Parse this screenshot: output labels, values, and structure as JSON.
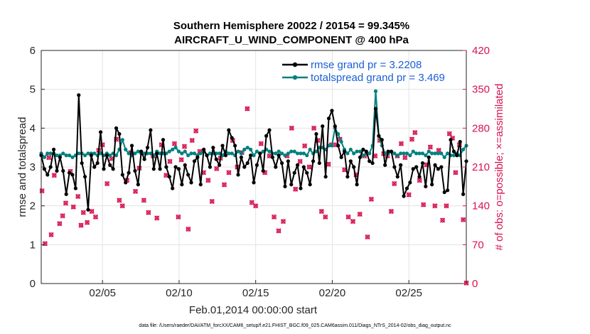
{
  "chart_data": {
    "type": "line",
    "title": "Southern Hemisphere 20022 / 20154 = 99.345%",
    "subtitle": "AIRCRAFT_U_WIND_COMPONENT @ 400 hPa",
    "xlabel": "Feb.01,2014 00:00:00 start",
    "ylabel_left": "rmse and totalspread",
    "ylabel_right": "# of obs: o=possible; ×=assimilated",
    "ylim_left": [
      0,
      6
    ],
    "ylim_right": [
      0,
      420
    ],
    "xlim": [
      1.0,
      28.75
    ],
    "grid": true,
    "yticks_left": [
      "0",
      "1",
      "2",
      "3",
      "4",
      "5",
      "6"
    ],
    "yticks_right": [
      "0",
      "70",
      "140",
      "210",
      "280",
      "350",
      "420"
    ],
    "xticks": [
      {
        "day": 5,
        "label": "02/05"
      },
      {
        "day": 10,
        "label": "02/10"
      },
      {
        "day": 15,
        "label": "02/15"
      },
      {
        "day": 20,
        "label": "02/20"
      },
      {
        "day": 25,
        "label": "02/25"
      }
    ],
    "series": [
      {
        "name": "rmse",
        "legend": "rmse grand pr = 3.2208",
        "color": "#000000",
        "values": [
          3.3,
          2.95,
          2.8,
          3.0,
          3.45,
          2.9,
          3.25,
          2.9,
          2.3,
          2.85,
          2.8,
          2.45,
          4.85,
          3.1,
          2.75,
          1.9,
          3.3,
          3.0,
          3.1,
          3.9,
          2.95,
          3.3,
          3.05,
          2.95,
          4.0,
          3.85,
          2.8,
          2.6,
          2.85,
          3.55,
          2.9,
          2.55,
          3.4,
          3.2,
          3.5,
          3.95,
          2.95,
          3.35,
          2.95,
          3.7,
          3.0,
          2.75,
          2.45,
          3.0,
          2.95,
          2.55,
          3.05,
          2.8,
          2.6,
          3.15,
          3.25,
          2.55,
          3.45,
          3.3,
          3.0,
          3.5,
          3.2,
          3.05,
          3.55,
          3.3,
          3.95,
          3.75,
          3.55,
          2.8,
          3.25,
          3.0,
          3.1,
          3.3,
          2.6,
          3.05,
          3.35,
          2.9,
          3.8,
          3.95,
          3.25,
          3.0,
          3.3,
          3.1,
          2.5,
          3.15,
          2.55,
          2.85,
          3.05,
          2.45,
          3.0,
          2.85,
          2.55,
          3.15,
          3.85,
          3.1,
          4.05,
          2.75,
          4.25,
          4.45,
          4.05,
          3.55,
          3.25,
          3.4,
          2.75,
          3.15,
          3.0,
          2.55,
          3.25,
          3.45,
          3.4,
          3.15,
          3.1,
          4.5,
          3.8,
          3.7,
          3.05,
          3.4,
          3.4,
          3.0,
          2.75,
          3.05,
          2.25,
          2.45,
          2.6,
          2.95,
          3.0,
          2.75,
          3.1,
          2.5,
          3.25,
          2.55,
          3.05,
          2.95,
          3.0,
          2.35,
          2.4,
          3.7,
          3.4,
          3.3,
          3.65,
          2.3,
          3.15
        ]
      },
      {
        "name": "totalspread",
        "legend": "totalspread grand pr = 3.469",
        "color": "#00807f",
        "values": [
          3.35,
          3.25,
          3.35,
          3.35,
          3.35,
          3.3,
          3.3,
          3.35,
          3.3,
          3.3,
          3.25,
          3.3,
          3.35,
          3.35,
          3.3,
          3.35,
          3.35,
          3.35,
          3.3,
          3.35,
          3.3,
          3.35,
          3.3,
          3.35,
          3.3,
          3.45,
          3.7,
          3.45,
          3.35,
          3.3,
          3.35,
          3.4,
          3.35,
          3.35,
          3.35,
          3.35,
          3.3,
          3.4,
          3.35,
          3.35,
          3.35,
          3.4,
          3.45,
          3.5,
          3.4,
          3.35,
          3.4,
          3.3,
          3.35,
          3.35,
          3.3,
          3.35,
          3.4,
          3.3,
          3.35,
          3.35,
          3.35,
          3.35,
          3.3,
          3.4,
          3.35,
          3.35,
          3.3,
          3.4,
          3.35,
          3.45,
          3.5,
          3.45,
          3.3,
          3.4,
          3.35,
          3.4,
          3.45,
          3.4,
          3.35,
          3.35,
          3.4,
          3.35,
          3.3,
          3.35,
          3.4,
          3.4,
          3.35,
          3.35,
          3.35,
          3.3,
          3.45,
          3.35,
          3.4,
          3.5,
          3.5,
          3.45,
          3.55,
          3.55,
          4.0,
          3.85,
          3.65,
          3.45,
          3.35,
          3.45,
          3.35,
          3.4,
          3.4,
          3.3,
          3.35,
          3.35,
          3.55,
          4.95,
          3.8,
          3.55,
          3.35,
          3.35,
          3.4,
          3.35,
          3.3,
          3.35,
          3.35,
          3.35,
          3.3,
          3.4,
          3.35,
          3.35,
          3.35,
          3.3,
          3.4,
          3.35,
          3.35,
          3.35,
          3.35,
          3.25,
          3.35,
          3.3,
          3.3,
          3.35,
          3.3,
          3.45,
          3.55
        ]
      }
    ],
    "obs_possible": [
      {
        "day": 1.05,
        "value": 167
      },
      {
        "day": 1.25,
        "value": 72
      },
      {
        "day": 1.5,
        "value": 227
      },
      {
        "day": 1.65,
        "value": 88
      },
      {
        "day": 1.85,
        "value": 195
      },
      {
        "day": 2.2,
        "value": 108
      },
      {
        "day": 2.4,
        "value": 122
      },
      {
        "day": 2.6,
        "value": 145
      },
      {
        "day": 2.9,
        "value": 202
      },
      {
        "day": 3.1,
        "value": 138
      },
      {
        "day": 3.4,
        "value": 157
      },
      {
        "day": 3.6,
        "value": 105
      },
      {
        "day": 3.75,
        "value": 128
      },
      {
        "day": 4.0,
        "value": 110
      },
      {
        "day": 4.3,
        "value": 130
      },
      {
        "day": 4.55,
        "value": 120
      },
      {
        "day": 4.75,
        "value": 240
      },
      {
        "day": 5.0,
        "value": 250
      },
      {
        "day": 5.3,
        "value": 180
      },
      {
        "day": 5.6,
        "value": 225
      },
      {
        "day": 5.9,
        "value": 260
      },
      {
        "day": 6.1,
        "value": 150
      },
      {
        "day": 6.3,
        "value": 140
      },
      {
        "day": 6.6,
        "value": 186
      },
      {
        "day": 6.85,
        "value": 236
      },
      {
        "day": 7.15,
        "value": 166
      },
      {
        "day": 7.4,
        "value": 208
      },
      {
        "day": 7.7,
        "value": 150
      },
      {
        "day": 8.0,
        "value": 128
      },
      {
        "day": 8.3,
        "value": 230
      },
      {
        "day": 8.55,
        "value": 118
      },
      {
        "day": 8.85,
        "value": 250
      },
      {
        "day": 9.15,
        "value": 195
      },
      {
        "day": 9.4,
        "value": 220
      },
      {
        "day": 9.7,
        "value": 252
      },
      {
        "day": 9.95,
        "value": 120
      },
      {
        "day": 10.15,
        "value": 223
      },
      {
        "day": 10.35,
        "value": 247
      },
      {
        "day": 10.6,
        "value": 98
      },
      {
        "day": 10.85,
        "value": 258
      },
      {
        "day": 11.1,
        "value": 275
      },
      {
        "day": 11.35,
        "value": 238
      },
      {
        "day": 11.6,
        "value": 200
      },
      {
        "day": 11.9,
        "value": 186
      },
      {
        "day": 12.15,
        "value": 148
      },
      {
        "day": 12.45,
        "value": 207
      },
      {
        "day": 12.7,
        "value": 226
      },
      {
        "day": 12.95,
        "value": 178
      },
      {
        "day": 13.25,
        "value": 200
      },
      {
        "day": 13.5,
        "value": 258
      },
      {
        "day": 13.8,
        "value": 210
      },
      {
        "day": 14.1,
        "value": 236
      },
      {
        "day": 14.45,
        "value": 315
      },
      {
        "day": 14.75,
        "value": 146
      },
      {
        "day": 15.0,
        "value": 140
      },
      {
        "day": 15.35,
        "value": 252
      },
      {
        "day": 15.6,
        "value": 200
      },
      {
        "day": 15.9,
        "value": 230
      },
      {
        "day": 16.2,
        "value": 120
      },
      {
        "day": 16.5,
        "value": 95
      },
      {
        "day": 16.8,
        "value": 112
      },
      {
        "day": 17.05,
        "value": 230
      },
      {
        "day": 17.35,
        "value": 280
      },
      {
        "day": 17.6,
        "value": 170
      },
      {
        "day": 17.9,
        "value": 220
      },
      {
        "day": 18.2,
        "value": 248
      },
      {
        "day": 18.5,
        "value": 210
      },
      {
        "day": 18.8,
        "value": 280
      },
      {
        "day": 19.05,
        "value": 258
      },
      {
        "day": 19.3,
        "value": 130
      },
      {
        "day": 19.55,
        "value": 120
      },
      {
        "day": 19.75,
        "value": 215
      },
      {
        "day": 19.95,
        "value": 250
      },
      {
        "day": 20.25,
        "value": 250
      },
      {
        "day": 20.5,
        "value": 260
      },
      {
        "day": 20.8,
        "value": 205
      },
      {
        "day": 21.05,
        "value": 120
      },
      {
        "day": 21.35,
        "value": 112
      },
      {
        "day": 21.55,
        "value": 196
      },
      {
        "day": 21.8,
        "value": 125
      },
      {
        "day": 22.1,
        "value": 230
      },
      {
        "day": 22.3,
        "value": 84
      },
      {
        "day": 22.55,
        "value": 152
      },
      {
        "day": 22.8,
        "value": 230
      },
      {
        "day": 23.1,
        "value": 258
      },
      {
        "day": 23.35,
        "value": 234
      },
      {
        "day": 23.6,
        "value": 230
      },
      {
        "day": 23.85,
        "value": 130
      },
      {
        "day": 24.05,
        "value": 180
      },
      {
        "day": 24.25,
        "value": 230
      },
      {
        "day": 24.5,
        "value": 252
      },
      {
        "day": 24.75,
        "value": 227
      },
      {
        "day": 25.0,
        "value": 160
      },
      {
        "day": 25.2,
        "value": 260
      },
      {
        "day": 25.4,
        "value": 272
      },
      {
        "day": 25.7,
        "value": 186
      },
      {
        "day": 25.95,
        "value": 142
      },
      {
        "day": 26.15,
        "value": 214
      },
      {
        "day": 26.4,
        "value": 246
      },
      {
        "day": 26.7,
        "value": 140
      },
      {
        "day": 26.95,
        "value": 240
      },
      {
        "day": 27.2,
        "value": 114
      },
      {
        "day": 27.45,
        "value": 140
      },
      {
        "day": 27.65,
        "value": 270
      },
      {
        "day": 27.85,
        "value": 262
      },
      {
        "day": 28.05,
        "value": 200
      },
      {
        "day": 28.3,
        "value": 250
      },
      {
        "day": 28.55,
        "value": 115
      },
      {
        "day": 28.75,
        "value": 1
      }
    ],
    "obs_assimilated_only_diff": "assimilated counts coincide with possible counts (drawn as × over o)"
  }
}
